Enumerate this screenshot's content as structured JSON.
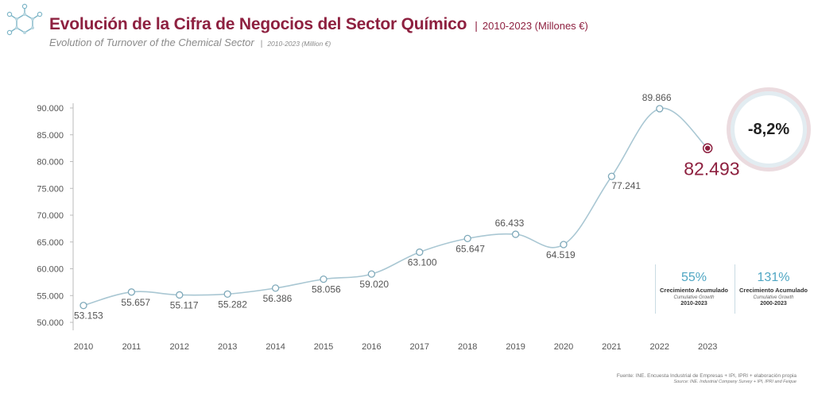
{
  "header": {
    "title": "Evolución de la Cifra de Negocios del Sector Químico",
    "separator": "|",
    "title_range": "2010-2023 (Millones €)",
    "subtitle": "Evolution of Turnover of the Chemical Sector",
    "subtitle_range": "2010-2023 (Million €)"
  },
  "colors": {
    "brand": "#8e2140",
    "line": "#a9c7d3",
    "accent": "#4fa6c3"
  },
  "chart_data": {
    "type": "line",
    "title": "Evolución de la Cifra de Negocios del Sector Químico",
    "x": [
      2010,
      2011,
      2012,
      2013,
      2014,
      2015,
      2016,
      2017,
      2018,
      2019,
      2020,
      2021,
      2022,
      2023
    ],
    "x_labels": [
      "2010",
      "2011",
      "2012",
      "2013",
      "2014",
      "2015",
      "2016",
      "2017",
      "2018",
      "2019",
      "2020",
      "2021",
      "2022",
      "2023"
    ],
    "values": [
      53153,
      55657,
      55117,
      55282,
      56386,
      58056,
      59020,
      63100,
      65647,
      66433,
      64519,
      77241,
      89866,
      82493
    ],
    "value_labels": [
      "53.153",
      "55.657",
      "55.117",
      "55.282",
      "56.386",
      "58.056",
      "59.020",
      "63.100",
      "65.647",
      "66.433",
      "64.519",
      "77.241",
      "89.866",
      "82.493"
    ],
    "ylim": [
      50000,
      90000
    ],
    "yticks": [
      50000,
      55000,
      60000,
      65000,
      70000,
      75000,
      80000,
      85000,
      90000
    ],
    "ytick_labels": [
      "50.000",
      "55.000",
      "60.000",
      "65.000",
      "70.000",
      "75.000",
      "80.000",
      "85.000",
      "90.000"
    ],
    "xlabel": "",
    "ylabel": "",
    "highlight_index": 13,
    "annotation_change": "-8,2%"
  },
  "stats": [
    {
      "pct": "55%",
      "label": "Crecimiento Acumulado",
      "label_en": "Cumulative Growth",
      "range": "2010-2023"
    },
    {
      "pct": "131%",
      "label": "Crecimiento Acumulado",
      "label_en": "Cumulative Growth",
      "range": "2000-2023"
    }
  ],
  "source": {
    "es": "Fuente: INE. Encuesta Industrial de Empresas + IPI, IPRI + elaboración propia",
    "en": "Source: INE. Industrial Company Survey + IPI, IPRI and Feique"
  }
}
